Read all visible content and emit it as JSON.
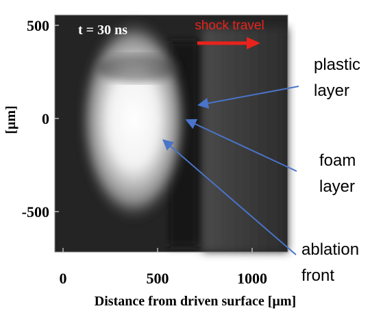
{
  "figure": {
    "time_label": "t = 30 ns",
    "shock_label": "shock travel",
    "x_axis": {
      "label": "Distance from driven surface [µm]",
      "ticks": [
        0,
        500,
        1000
      ]
    },
    "y_axis": {
      "label": "[µm]",
      "ticks": [
        500,
        0,
        -500
      ]
    },
    "annotations": [
      {
        "lines": [
          "plastic",
          "layer"
        ]
      },
      {
        "lines": [
          "foam",
          "layer"
        ]
      },
      {
        "lines": [
          "ablation",
          "front"
        ]
      }
    ]
  }
}
